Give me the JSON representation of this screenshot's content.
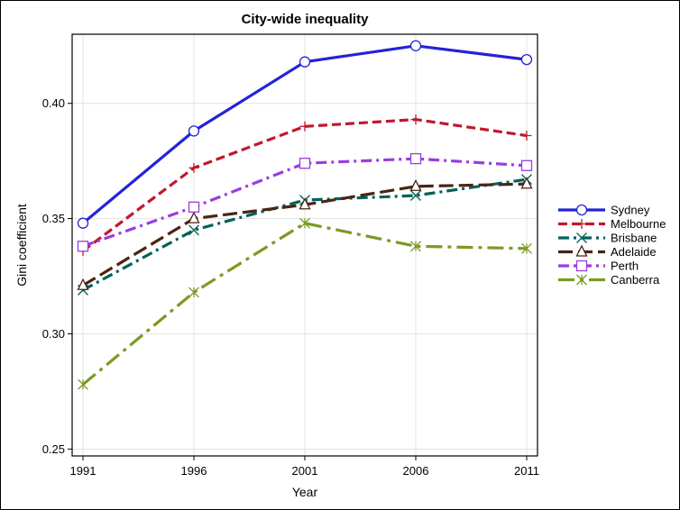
{
  "chart_data": {
    "type": "line",
    "title": "City-wide inequality",
    "xlabel": "Year",
    "ylabel": "Gini coefficient",
    "x": [
      1991,
      1996,
      2001,
      2006,
      2011
    ],
    "x_tick_labels": [
      "1991",
      "1996",
      "2001",
      "2006",
      "2011"
    ],
    "y_ticks": [
      0.25,
      0.3,
      0.35,
      0.4
    ],
    "y_tick_labels": [
      "0.25",
      "0.30",
      "0.35",
      "0.40"
    ],
    "ylim": [
      0.247,
      0.43
    ],
    "grid": true,
    "legend_position": "right",
    "series": [
      {
        "name": "Sydney",
        "values": [
          0.348,
          0.388,
          0.418,
          0.425,
          0.419
        ],
        "color": "#2323D6",
        "dash": "solid",
        "marker": "circle",
        "width": 3.2
      },
      {
        "name": "Melbourne",
        "values": [
          0.336,
          0.372,
          0.39,
          0.393,
          0.386
        ],
        "color": "#C0182C",
        "dash": "dash",
        "marker": "plus",
        "width": 3.2
      },
      {
        "name": "Brisbane",
        "values": [
          0.319,
          0.345,
          0.358,
          0.36,
          0.367
        ],
        "color": "#00625A",
        "dash": "dashdot",
        "marker": "x",
        "width": 3.2
      },
      {
        "name": "Adelaide",
        "values": [
          0.321,
          0.35,
          0.356,
          0.364,
          0.365
        ],
        "color": "#4A2412",
        "dash": "longdash",
        "marker": "triangle",
        "width": 3.2
      },
      {
        "name": "Perth",
        "values": [
          0.338,
          0.355,
          0.374,
          0.376,
          0.373
        ],
        "color": "#9A3CE0",
        "dash": "dashdot",
        "marker": "square",
        "width": 3.2
      },
      {
        "name": "Canberra",
        "values": [
          0.278,
          0.318,
          0.348,
          0.338,
          0.337
        ],
        "color": "#7C9A22",
        "dash": "longdashdot",
        "marker": "asterisk",
        "width": 3.2
      }
    ]
  }
}
